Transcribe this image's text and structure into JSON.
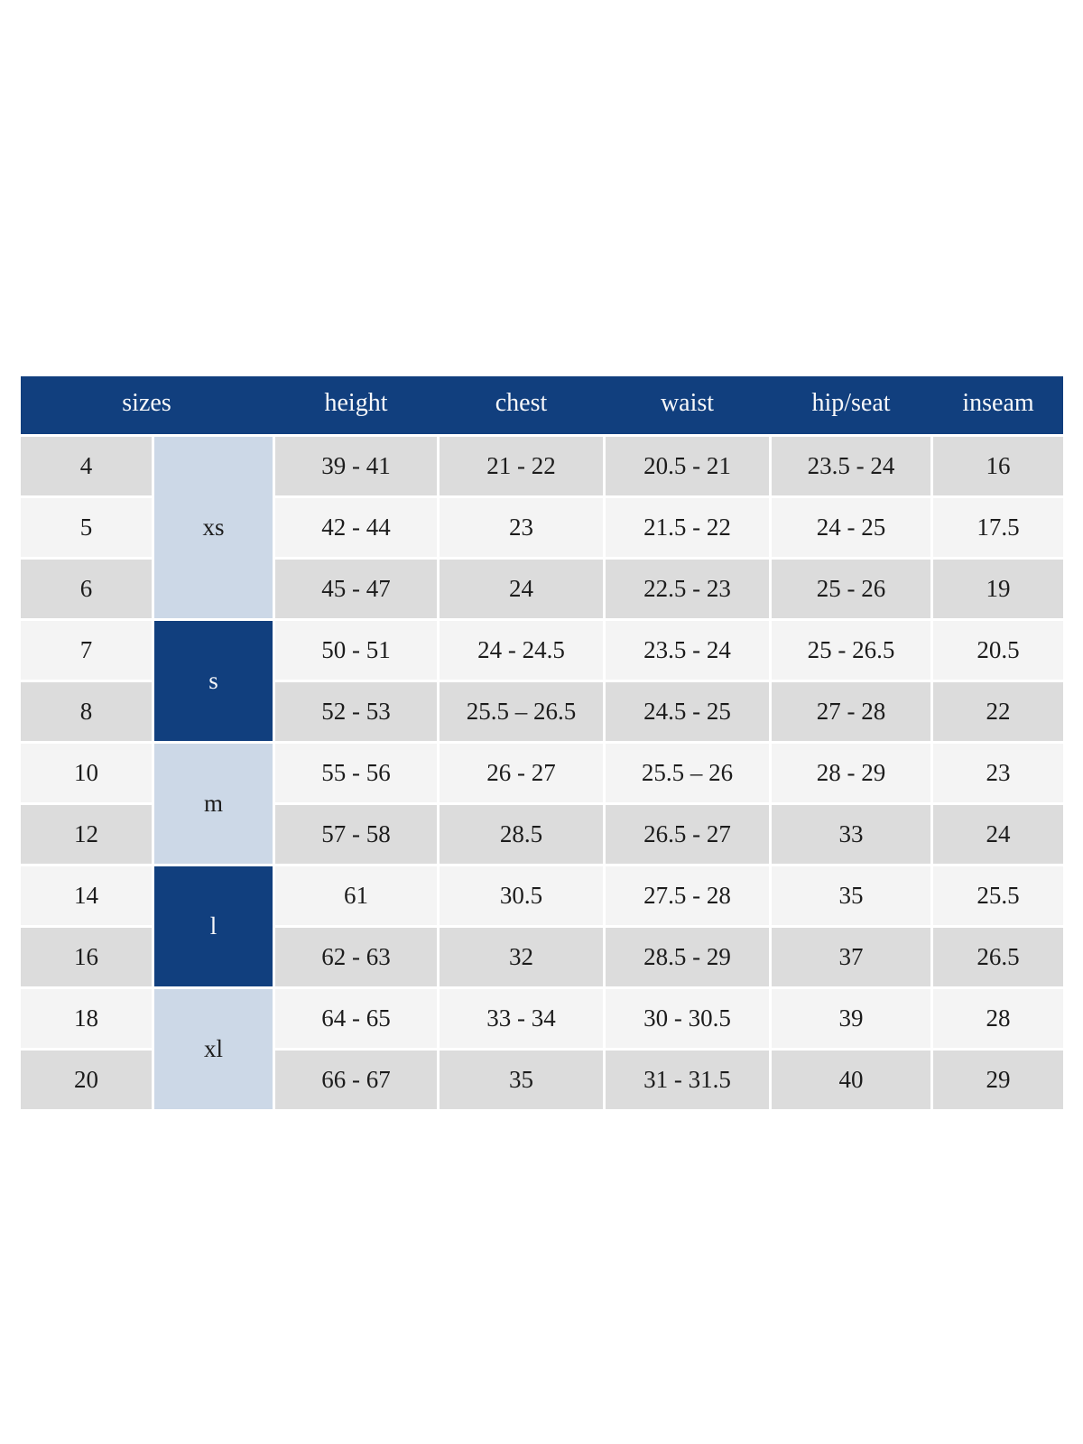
{
  "colors": {
    "header_bg": "#113f7e",
    "header_text": "#f7f8fa",
    "group_dark_bg": "#113f7e",
    "group_light_bg": "#ccd8e7",
    "row_gray": "#dcdcdc",
    "row_light": "#f4f4f4",
    "body_text": "#1c1c1c",
    "page_bg": "#ffffff"
  },
  "chart_data": {
    "type": "table",
    "header": [
      "sizes",
      "height",
      "chest",
      "waist",
      "hip/seat",
      "inseam"
    ],
    "groups": [
      {
        "label": "xs",
        "tone": "light"
      },
      {
        "label": "s",
        "tone": "dark"
      },
      {
        "label": "m",
        "tone": "light"
      },
      {
        "label": "l",
        "tone": "dark"
      },
      {
        "label": "xl",
        "tone": "light"
      }
    ],
    "rows": [
      {
        "size": "4",
        "group": "xs",
        "height": "39 - 41",
        "chest": "21 - 22",
        "waist": "20.5 - 21",
        "hip_seat": "23.5 - 24",
        "inseam": "16"
      },
      {
        "size": "5",
        "group": "xs",
        "height": "42 - 44",
        "chest": "23",
        "waist": "21.5 - 22",
        "hip_seat": "24 - 25",
        "inseam": "17.5"
      },
      {
        "size": "6",
        "group": "xs",
        "height": "45 - 47",
        "chest": "24",
        "waist": "22.5 - 23",
        "hip_seat": "25 - 26",
        "inseam": "19"
      },
      {
        "size": "7",
        "group": "s",
        "height": "50 - 51",
        "chest": "24 - 24.5",
        "waist": "23.5 - 24",
        "hip_seat": "25 - 26.5",
        "inseam": "20.5"
      },
      {
        "size": "8",
        "group": "s",
        "height": "52 - 53",
        "chest": "25.5 – 26.5",
        "waist": "24.5 - 25",
        "hip_seat": "27 - 28",
        "inseam": "22"
      },
      {
        "size": "10",
        "group": "m",
        "height": "55 - 56",
        "chest": "26 - 27",
        "waist": "25.5 – 26",
        "hip_seat": "28 - 29",
        "inseam": "23"
      },
      {
        "size": "12",
        "group": "m",
        "height": "57 - 58",
        "chest": "28.5",
        "waist": "26.5 - 27",
        "hip_seat": "33",
        "inseam": "24"
      },
      {
        "size": "14",
        "group": "l",
        "height": "61",
        "chest": "30.5",
        "waist": "27.5 - 28",
        "hip_seat": "35",
        "inseam": "25.5"
      },
      {
        "size": "16",
        "group": "l",
        "height": "62 - 63",
        "chest": "32",
        "waist": "28.5 - 29",
        "hip_seat": "37",
        "inseam": "26.5"
      },
      {
        "size": "18",
        "group": "xl",
        "height": "64 - 65",
        "chest": "33 - 34",
        "waist": "30 - 30.5",
        "hip_seat": "39",
        "inseam": "28"
      },
      {
        "size": "20",
        "group": "xl",
        "height": "66 - 67",
        "chest": "35",
        "waist": "31 - 31.5",
        "hip_seat": "40",
        "inseam": "29"
      }
    ]
  }
}
